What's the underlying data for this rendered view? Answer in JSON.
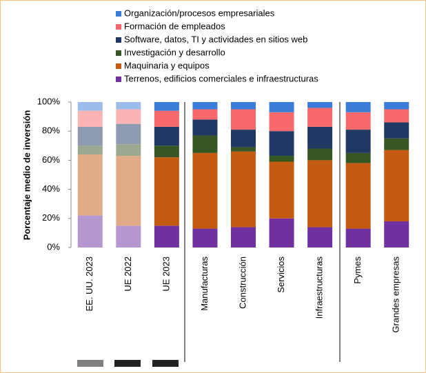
{
  "chart_data": {
    "type": "stacked_bar",
    "y_label": "Porcentaje medio de inversión",
    "categories": [
      "EE. UU. 2023",
      "UE 2022",
      "UE 2023",
      "Manufacturas",
      "Construcción",
      "Servicios",
      "Infraestructuras",
      "Pymes",
      "Grandes empresas"
    ],
    "series": [
      {
        "name": "Terrenos, edificios comerciales e infraestructuras",
        "color": "#7030a0",
        "values": [
          22,
          15,
          15,
          13,
          14,
          20,
          14,
          13,
          18
        ]
      },
      {
        "name": "Maquinaria y equipos",
        "color": "#c55a11",
        "values": [
          42,
          48,
          47,
          52,
          52,
          39,
          46,
          45,
          49
        ]
      },
      {
        "name": "Investigación y desarrollo",
        "color": "#375623",
        "values": [
          6,
          8,
          8,
          12,
          3,
          4,
          8,
          7,
          8
        ]
      },
      {
        "name": "Software, datos, TI y actividades en sitios web",
        "color": "#1f3864",
        "values": [
          13,
          14,
          13,
          11,
          12,
          17,
          15,
          16,
          11
        ]
      },
      {
        "name": "Formación de empleados",
        "color": "#f8696b",
        "values": [
          11,
          10,
          11,
          7,
          14,
          13,
          13,
          12,
          9
        ]
      },
      {
        "name": "Organización/procesos empresariales",
        "color": "#3b7dd8",
        "values": [
          6,
          5,
          6,
          5,
          5,
          7,
          4,
          7,
          5
        ]
      }
    ],
    "ylim": [
      0,
      100
    ],
    "yticks": [
      {
        "value": 0,
        "label": "0%"
      },
      {
        "value": 20,
        "label": "20%"
      },
      {
        "value": 40,
        "label": "40%"
      },
      {
        "value": 60,
        "label": "60%"
      },
      {
        "value": 80,
        "label": "80%"
      },
      {
        "value": 100,
        "label": "100%"
      }
    ]
  }
}
